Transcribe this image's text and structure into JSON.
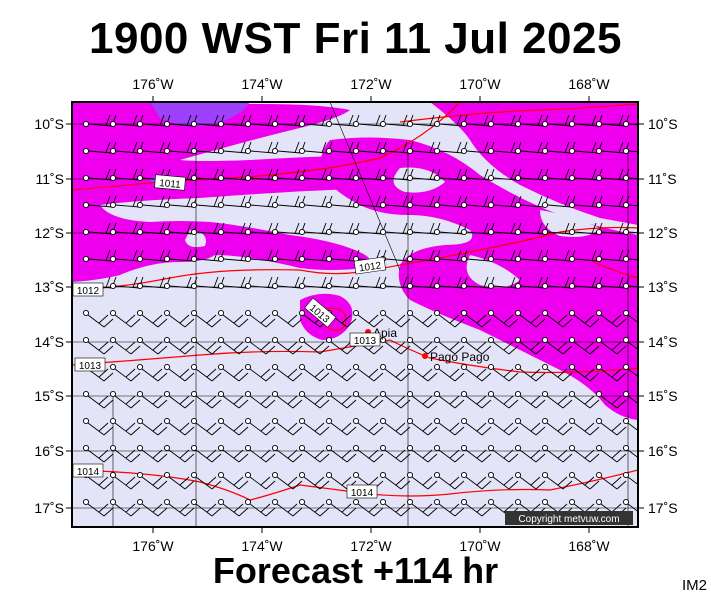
{
  "title": "1900 WST Fri 11 Jul 2025",
  "footer": "Forecast +114 hr",
  "corner_tag": "IM2",
  "copyright": "Copyright metvuw.com",
  "colors": {
    "background_low": "#e4e4f8",
    "precip_mid": "#ee00ee",
    "precip_high": "#a040ff",
    "isobar": "#ff0000"
  },
  "axes": {
    "lon_labels": [
      "176˚W",
      "174˚W",
      "172˚W",
      "170˚W",
      "168˚W"
    ],
    "lat_labels": [
      "10˚S",
      "11˚S",
      "12˚S",
      "13˚S",
      "14˚S",
      "15˚S",
      "16˚S",
      "17˚S"
    ]
  },
  "isobar_labels": [
    "1011",
    "1012",
    "1012",
    "1013",
    "1013",
    "1013",
    "1014",
    "1014"
  ],
  "places": [
    "Apia",
    "Pago Pago"
  ],
  "wind_barbs": {
    "symbol": "wind barb",
    "lon_range": [
      "177˚W",
      "167˚W"
    ],
    "lat_range": [
      "10˚S",
      "17˚S"
    ]
  }
}
